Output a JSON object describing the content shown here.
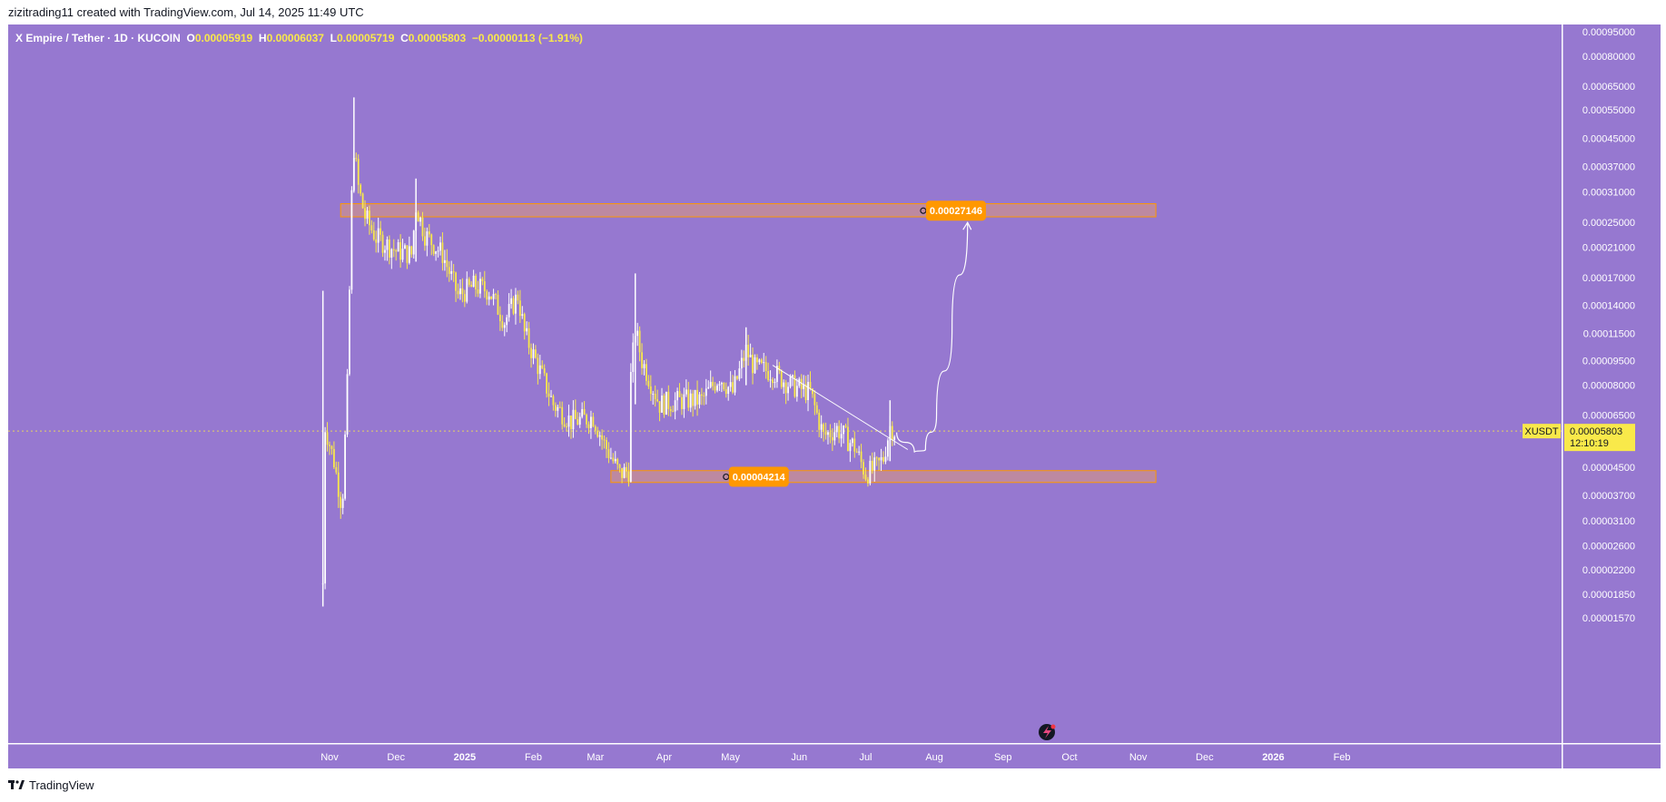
{
  "header": {
    "text": "zizitrading11 created with TradingView.com, Jul 14, 2025 11:49 UTC"
  },
  "ohlc": {
    "symbol": "X Empire / Tether · 1D · KUCOIN",
    "o_label": "O",
    "o": "0.00005919",
    "h_label": "H",
    "h": "0.00006037",
    "l_label": "L",
    "l": "0.00005719",
    "c_label": "C",
    "c": "0.00005803",
    "change": "−0.00000113 (−1.91%)"
  },
  "footer": {
    "brand": "TradingView"
  },
  "colors": {
    "background": "#9678d0",
    "candle": "#ffffff",
    "candle_alt": "#f9e94a",
    "zone_fill": "#c98f91",
    "zone_border": "#ff9800",
    "badge": "#ff9800",
    "price_label_bg": "#f9e94a"
  },
  "chart_data": {
    "type": "candlestick",
    "symbol": "XUSDT",
    "scale": "log",
    "x_ticks": [
      "Nov",
      "Dec",
      "2025",
      "Feb",
      "Mar",
      "Apr",
      "May",
      "Jun",
      "Jul",
      "Aug",
      "Sep",
      "Oct",
      "Nov",
      "Dec",
      "2026",
      "Feb"
    ],
    "y_ticks": [
      "0.00095000",
      "0.00080000",
      "0.00065000",
      "0.00055000",
      "0.00045000",
      "0.00037000",
      "0.00031000",
      "0.00025000",
      "0.00021000",
      "0.00017000",
      "0.00014000",
      "0.00011500",
      "0.00009500",
      "0.00008000",
      "0.00006500",
      "0.00004500",
      "0.00003700",
      "0.00003100",
      "0.00002600",
      "0.00002200",
      "0.00001850",
      "0.00001570"
    ],
    "last_price_label": {
      "symbol": "XUSDT",
      "price": "0.00005803",
      "countdown": "12:10:19"
    },
    "zones": [
      {
        "name": "resistance",
        "from": "2024-11-06",
        "to": "2025-11-09",
        "low": 0.00026,
        "high": 0.000285
      },
      {
        "name": "support",
        "from": "2025-03-08",
        "to": "2025-11-09",
        "low": 4.05e-05,
        "high": 4.4e-05
      }
    ],
    "annotations": [
      {
        "label": "0.00027146",
        "date": "2025-07-27",
        "price": 0.00027146
      },
      {
        "label": "0.00004214",
        "date": "2025-04-29",
        "price": 4.214e-05
      }
    ],
    "trendline": {
      "from": [
        "2025-05-20",
        9.2e-05
      ],
      "to": [
        "2025-07-20",
        5.1e-05
      ]
    },
    "projection": [
      [
        "2025-07-15",
        5.75e-05
      ],
      [
        "2025-07-23",
        5e-05
      ],
      [
        "2025-07-28",
        5.1e-05
      ],
      [
        "2025-08-02",
        6.5e-05
      ],
      [
        "2025-08-09",
        0.00012
      ],
      [
        "2025-08-16",
        0.00025
      ]
    ],
    "close_path": [
      [
        "2024-10-29",
        2e-05
      ],
      [
        "2024-10-30",
        6e-05
      ],
      [
        "2024-11-01",
        5.3e-05
      ],
      [
        "2024-11-03",
        4.7e-05
      ],
      [
        "2024-11-06",
        3.6e-05
      ],
      [
        "2024-11-07",
        3.8e-05
      ],
      [
        "2024-11-09",
        8e-05
      ],
      [
        "2024-11-11",
        0.0003
      ],
      [
        "2024-11-12",
        0.00042
      ],
      [
        "2024-11-14",
        0.00032
      ],
      [
        "2024-11-17",
        0.00026
      ],
      [
        "2024-11-22",
        0.000225
      ],
      [
        "2024-12-01",
        0.000205
      ],
      [
        "2024-12-08",
        0.0002
      ],
      [
        "2024-12-10",
        0.00028
      ],
      [
        "2024-12-14",
        0.00023
      ],
      [
        "2024-12-22",
        0.0002
      ],
      [
        "2024-12-29",
        0.00015
      ],
      [
        "2025-01-05",
        0.00016
      ],
      [
        "2025-01-12",
        0.000155
      ],
      [
        "2025-01-19",
        0.000125
      ],
      [
        "2025-01-25",
        0.00015
      ],
      [
        "2025-01-28",
        0.000115
      ],
      [
        "2025-02-05",
        8.5e-05
      ],
      [
        "2025-02-10",
        7e-05
      ],
      [
        "2025-02-18",
        6.2e-05
      ],
      [
        "2025-02-28",
        6.4e-05
      ],
      [
        "2025-03-05",
        5.3e-05
      ],
      [
        "2025-03-12",
        4.3e-05
      ],
      [
        "2025-03-16",
        4.4e-05
      ],
      [
        "2025-03-17",
        8.5e-05
      ],
      [
        "2025-03-19",
        0.000118
      ],
      [
        "2025-03-22",
        9.5e-05
      ],
      [
        "2025-03-30",
        7e-05
      ],
      [
        "2025-04-10",
        7.2e-05
      ],
      [
        "2025-04-18",
        7.2e-05
      ],
      [
        "2025-04-26",
        8.5e-05
      ],
      [
        "2025-05-02",
        7.6e-05
      ],
      [
        "2025-05-08",
        0.000102
      ],
      [
        "2025-05-12",
        9e-05
      ],
      [
        "2025-05-20",
        8.8e-05
      ],
      [
        "2025-05-28",
        8e-05
      ],
      [
        "2025-06-06",
        7.6e-05
      ],
      [
        "2025-06-12",
        5.6e-05
      ],
      [
        "2025-06-18",
        5.9e-05
      ],
      [
        "2025-06-26",
        5.2e-05
      ],
      [
        "2025-07-01",
        4.3e-05
      ],
      [
        "2025-07-06",
        4.5e-05
      ],
      [
        "2025-07-09",
        4.8e-05
      ],
      [
        "2025-07-12",
        6e-05
      ],
      [
        "2025-07-14",
        5.803e-05
      ]
    ],
    "wicks": [
      {
        "date": "2024-11-12",
        "high": 0.0006,
        "low": 0.00031
      },
      {
        "date": "2024-12-10",
        "high": 0.00034,
        "low": 0.00019
      },
      {
        "date": "2025-03-19",
        "high": 0.000175,
        "low": 7e-05
      },
      {
        "date": "2025-05-08",
        "high": 0.00012,
        "low": 8e-05
      },
      {
        "date": "2025-07-12",
        "high": 7.2e-05,
        "low": 4.7e-05
      },
      {
        "date": "2024-10-29",
        "high": 0.000155,
        "low": 1.7e-05
      }
    ]
  }
}
